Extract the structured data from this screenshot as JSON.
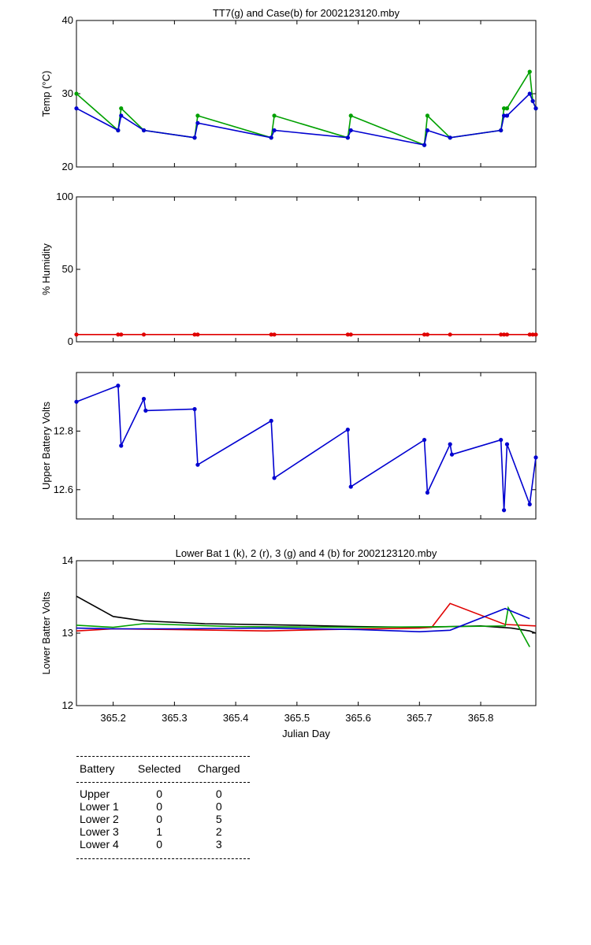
{
  "chart_data": [
    {
      "type": "line",
      "title": "TT7(g) and Case(b) for 2002123120.mby",
      "xlabel": "",
      "ylabel": "Temp  (°C)",
      "xlim": [
        365.14,
        365.89
      ],
      "ylim": [
        20,
        40
      ],
      "yticks": [
        "20",
        "30",
        "40"
      ],
      "series": [
        {
          "name": "TT7",
          "color": "#00a000",
          "x": [
            365.14,
            365.208,
            365.213,
            365.25,
            365.333,
            365.338,
            365.458,
            365.463,
            365.583,
            365.588,
            365.708,
            365.713,
            365.75,
            365.833,
            365.838,
            365.843,
            365.88,
            365.885,
            365.89
          ],
          "y": [
            30,
            25,
            28,
            25,
            24,
            27,
            24,
            27,
            24,
            27,
            23,
            27,
            24,
            25,
            28,
            28,
            33,
            29,
            28
          ]
        },
        {
          "name": "Case",
          "color": "#0000d0",
          "x": [
            365.14,
            365.208,
            365.213,
            365.25,
            365.333,
            365.338,
            365.458,
            365.463,
            365.583,
            365.588,
            365.708,
            365.713,
            365.75,
            365.833,
            365.838,
            365.843,
            365.88,
            365.885,
            365.89
          ],
          "y": [
            28,
            25,
            27,
            25,
            24,
            26,
            24,
            25,
            24,
            25,
            23,
            25,
            24,
            25,
            27,
            27,
            30,
            29,
            28
          ]
        }
      ]
    },
    {
      "type": "line",
      "title": "",
      "xlabel": "",
      "ylabel": "% Humidity",
      "xlim": [
        365.14,
        365.89
      ],
      "ylim": [
        0,
        100
      ],
      "yticks": [
        "0",
        "50",
        "100"
      ],
      "series": [
        {
          "name": "Humidity",
          "color": "#e00000",
          "x": [
            365.14,
            365.208,
            365.213,
            365.25,
            365.333,
            365.338,
            365.458,
            365.463,
            365.583,
            365.588,
            365.708,
            365.713,
            365.75,
            365.833,
            365.838,
            365.843,
            365.88,
            365.885,
            365.89
          ],
          "y": [
            5,
            5,
            5,
            5,
            5,
            5,
            5,
            5,
            5,
            5,
            5,
            5,
            5,
            5,
            5,
            5,
            5,
            5,
            5
          ]
        }
      ]
    },
    {
      "type": "line",
      "title": "",
      "xlabel": "",
      "ylabel": "Upper Battery Volts",
      "xlim": [
        365.14,
        365.89
      ],
      "ylim": [
        12.5,
        13.0
      ],
      "yticks": [
        "12.6",
        "12.8"
      ],
      "ytick_values": [
        12.6,
        12.8
      ],
      "series": [
        {
          "name": "Upper",
          "color": "#0000d0",
          "x": [
            365.14,
            365.208,
            365.213,
            365.25,
            365.253,
            365.333,
            365.338,
            365.458,
            365.463,
            365.583,
            365.588,
            365.708,
            365.713,
            365.75,
            365.753,
            365.833,
            365.838,
            365.843,
            365.88,
            365.89
          ],
          "y": [
            12.9,
            12.955,
            12.75,
            12.91,
            12.87,
            12.875,
            12.685,
            12.835,
            12.64,
            12.805,
            12.61,
            12.77,
            12.59,
            12.755,
            12.72,
            12.77,
            12.53,
            12.755,
            12.55,
            12.71
          ]
        }
      ]
    },
    {
      "type": "line",
      "title": "Lower Bat 1 (k), 2 (r), 3 (g) and 4 (b) for 2002123120.mby",
      "xlabel": "Julian Day",
      "ylabel": "Lower Batter Volts",
      "xlim": [
        365.14,
        365.89
      ],
      "ylim": [
        12,
        14
      ],
      "yticks": [
        "12",
        "13",
        "14"
      ],
      "xticks": [
        "365.2",
        "365.3",
        "365.4",
        "365.5",
        "365.6",
        "365.7",
        "365.8"
      ],
      "xtick_values": [
        365.2,
        365.3,
        365.4,
        365.5,
        365.6,
        365.7,
        365.8
      ],
      "series": [
        {
          "name": "Lower Bat 1",
          "color": "#000000",
          "x": [
            365.14,
            365.2,
            365.25,
            365.35,
            365.5,
            365.6,
            365.7,
            365.8,
            365.85,
            365.88,
            365.89
          ],
          "y": [
            13.51,
            13.23,
            13.17,
            13.13,
            13.11,
            13.09,
            13.08,
            13.1,
            13.07,
            13.03,
            13.0
          ]
        },
        {
          "name": "Lower Bat 2",
          "color": "#e00000",
          "x": [
            365.14,
            365.2,
            365.3,
            365.45,
            365.55,
            365.7,
            365.72,
            365.75,
            365.84,
            365.89
          ],
          "y": [
            13.03,
            13.06,
            13.05,
            13.03,
            13.05,
            13.07,
            13.08,
            13.41,
            13.12,
            13.1
          ]
        },
        {
          "name": "Lower Bat 3",
          "color": "#00a000",
          "x": [
            365.14,
            365.2,
            365.25,
            365.4,
            365.6,
            365.75,
            365.84,
            365.845,
            365.88
          ],
          "y": [
            13.11,
            13.08,
            13.13,
            13.09,
            13.08,
            13.09,
            13.1,
            13.35,
            12.81
          ]
        },
        {
          "name": "Lower Bat 4",
          "color": "#0000d0",
          "x": [
            365.14,
            365.2,
            365.3,
            365.45,
            365.6,
            365.7,
            365.75,
            365.84,
            365.88
          ],
          "y": [
            13.07,
            13.06,
            13.06,
            13.07,
            13.05,
            13.02,
            13.04,
            13.34,
            13.2
          ]
        }
      ]
    }
  ],
  "battery_table": {
    "headers": [
      "Battery",
      "Selected",
      "Charged"
    ],
    "rows": [
      [
        "Upper",
        "0",
        "0"
      ],
      [
        "Lower 1",
        "0",
        "0"
      ],
      [
        "Lower 2",
        "0",
        "5"
      ],
      [
        "Lower 3",
        "1",
        "2"
      ],
      [
        "Lower 4",
        "0",
        "3"
      ]
    ]
  }
}
